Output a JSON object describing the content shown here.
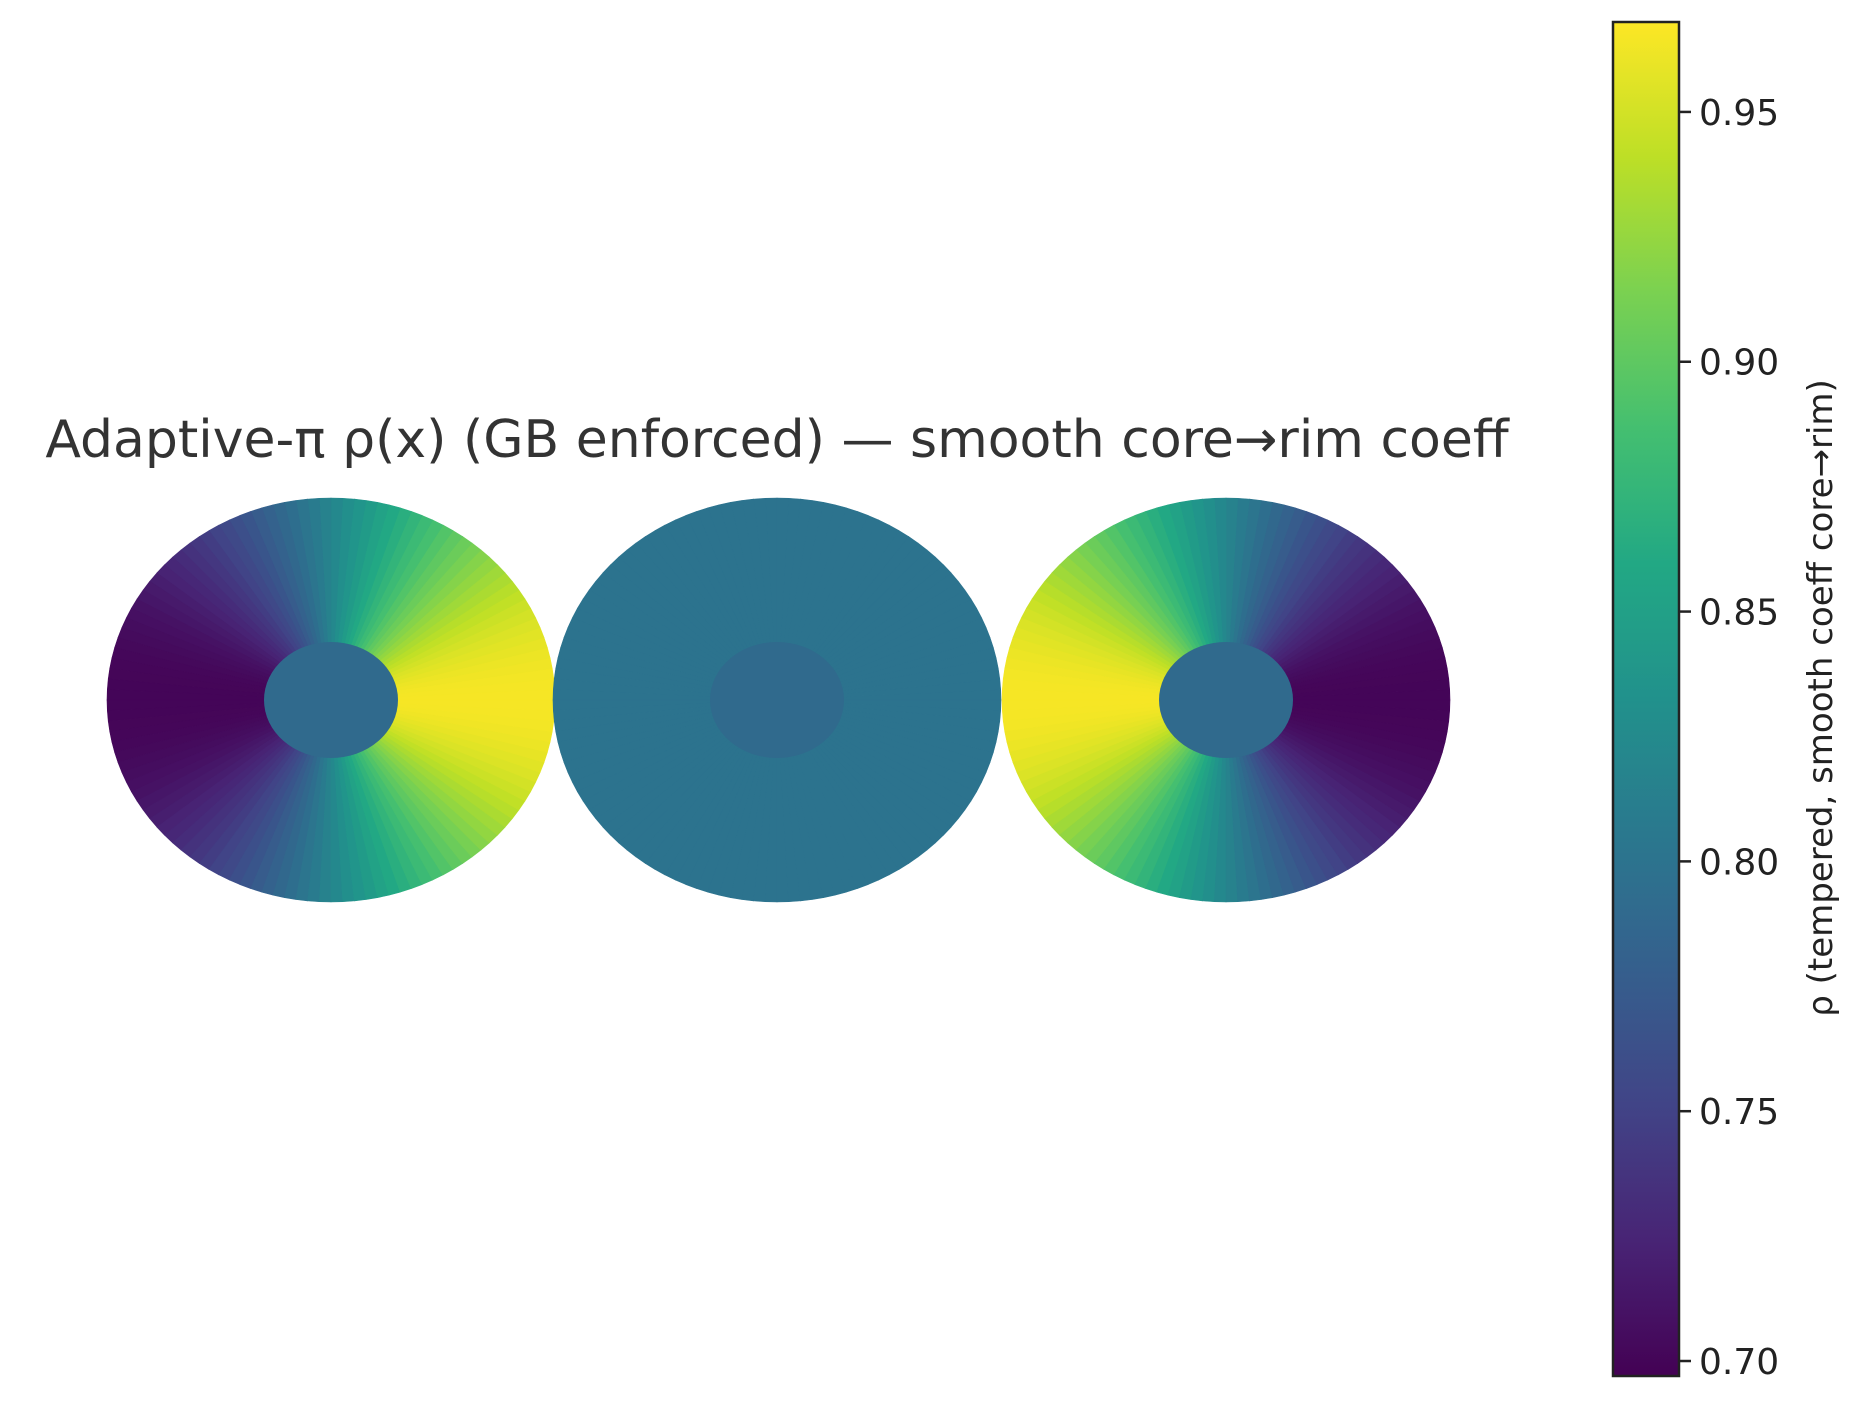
{
  "chart_data": {
    "type": "heatmap",
    "title": "Adaptive-π ρ(x) (GB enforced) — smooth core→rim coeff",
    "panels": [
      {
        "name": "left",
        "field": "radial-fan",
        "orientation": 1,
        "core_value": 0.79
      },
      {
        "name": "center",
        "field": "uniform",
        "value": 0.8,
        "core_value": 0.79
      },
      {
        "name": "right",
        "field": "radial-fan",
        "orientation": -1,
        "core_value": 0.79
      }
    ],
    "field_range": [
      0.7,
      0.965
    ],
    "colorbar": {
      "label": "ρ (tempered, smooth coeff core→rim)",
      "colormap": "viridis",
      "range": [
        0.697,
        0.968
      ],
      "ticks": [
        0.7,
        0.75,
        0.8,
        0.85,
        0.9,
        0.95
      ],
      "tick_labels": [
        "0.70",
        "0.75",
        "0.80",
        "0.85",
        "0.90",
        "0.95"
      ]
    },
    "grid": false,
    "axes_visible": false
  }
}
